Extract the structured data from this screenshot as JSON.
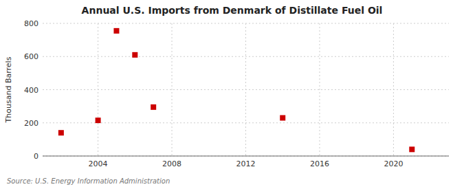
{
  "chart_data": {
    "type": "scatter",
    "title": "Annual U.S. Imports from Denmark of Distillate Fuel Oil",
    "ylabel": "Thousand Barrels",
    "source": "Source: U.S. Energy Information Administration",
    "x": [
      2002,
      2004,
      2005,
      2006,
      2007,
      2014,
      2021
    ],
    "values": [
      140,
      215,
      755,
      610,
      295,
      230,
      40
    ],
    "color": "#cc0000",
    "marker": "square",
    "xlim": [
      2001,
      2023
    ],
    "ylim": [
      0,
      800
    ],
    "xticks": [
      2004,
      2008,
      2012,
      2016,
      2020
    ],
    "yticks": [
      0,
      200,
      400,
      600,
      800
    ],
    "grid": true
  }
}
